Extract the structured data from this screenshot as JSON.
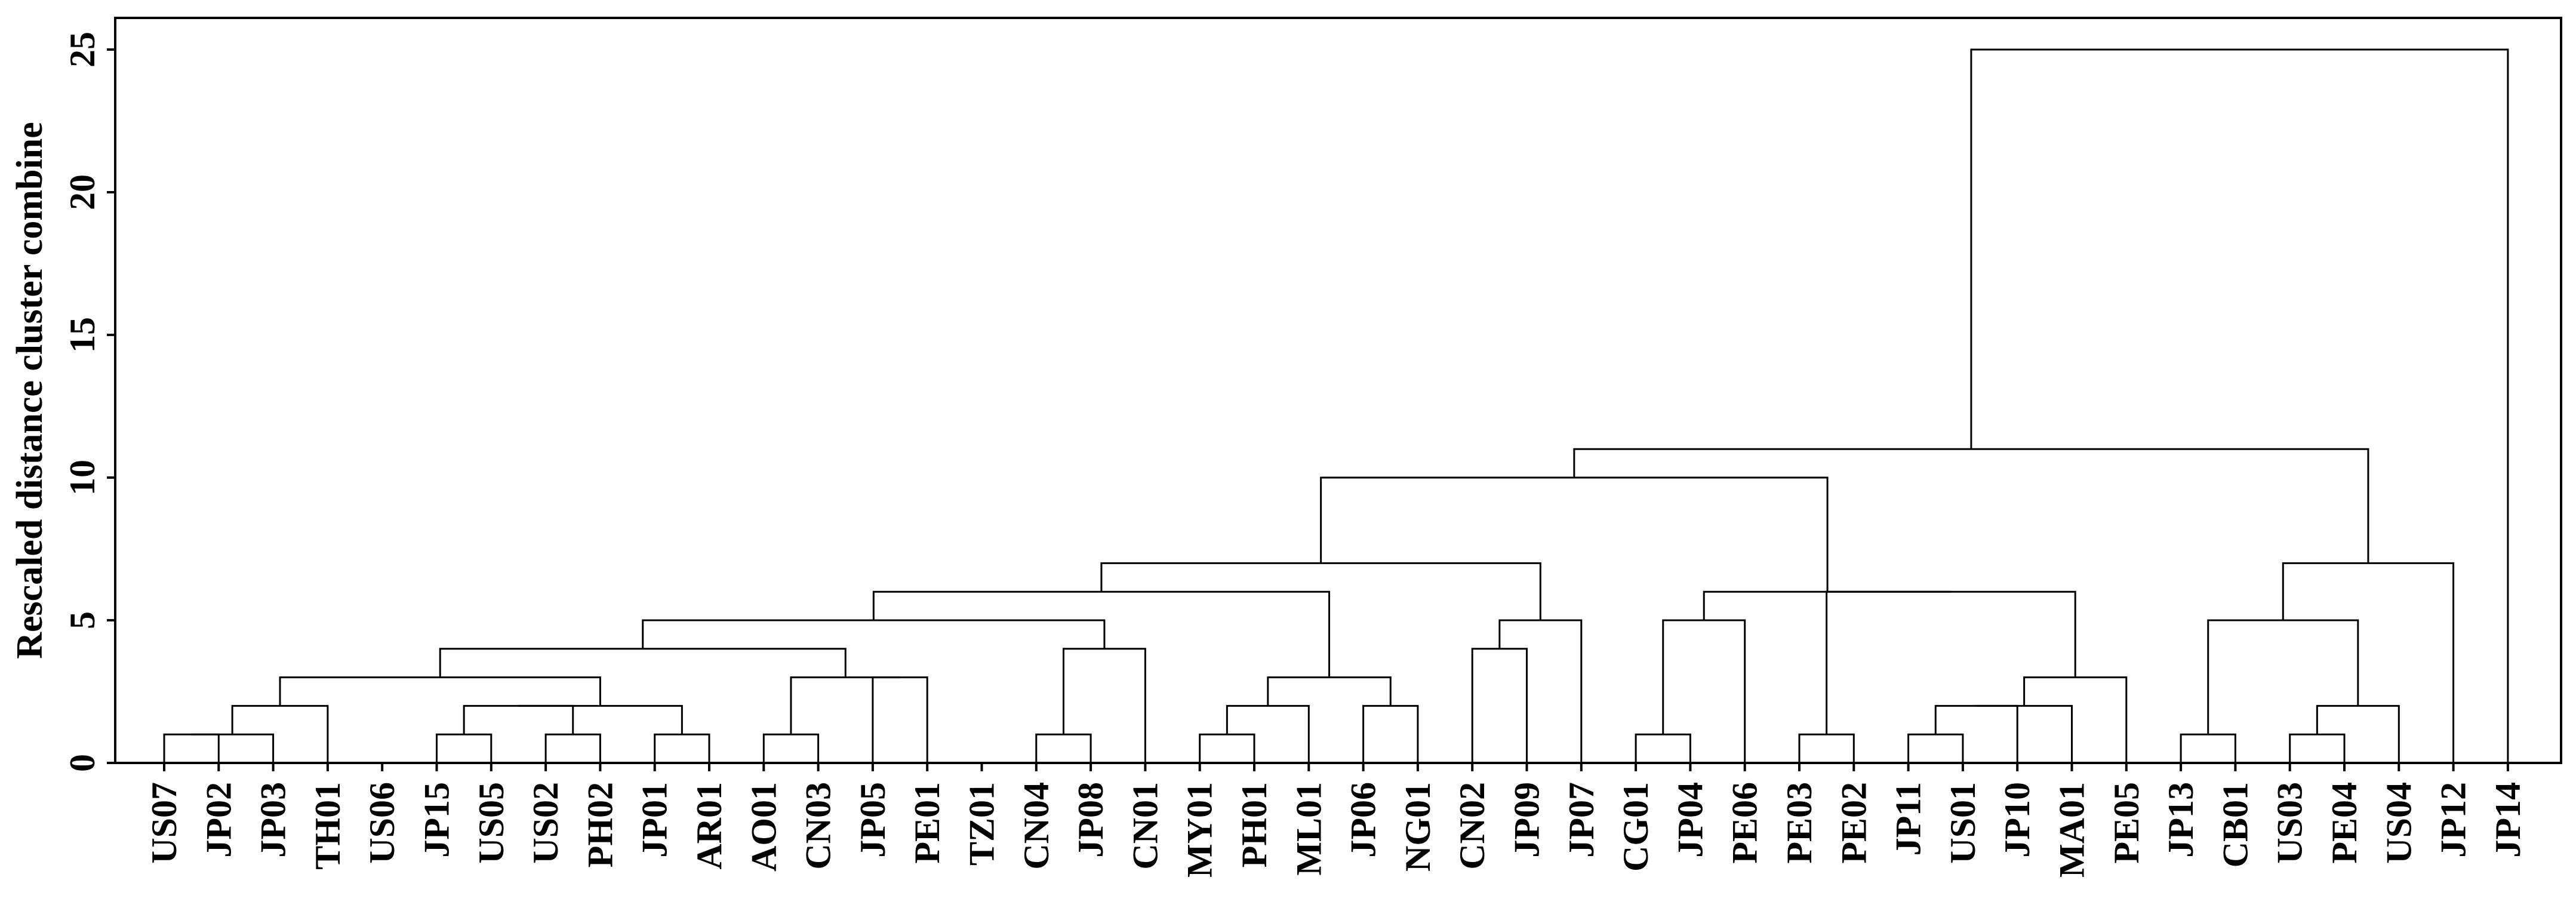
{
  "chart_data": {
    "type": "dendrogram",
    "title": "",
    "xlabel": "",
    "ylabel": "Rescaled distance cluster combine",
    "ylim": [
      0,
      26
    ],
    "yticks": [
      0,
      5,
      10,
      15,
      20,
      25
    ],
    "grid": false,
    "leaves": [
      "US07",
      "JP02",
      "JP03",
      "TH01",
      "US06",
      "JP15",
      "US05",
      "US02",
      "PH02",
      "JP01",
      "AR01",
      "AO01",
      "CN03",
      "JP05",
      "PE01",
      "TZ01",
      "CN04",
      "JP08",
      "CN01",
      "MY01",
      "PH01",
      "ML01",
      "JP06",
      "NG01",
      "CN02",
      "JP09",
      "JP07",
      "CG01",
      "JP04",
      "PE06",
      "PE03",
      "PE02",
      "JP11",
      "US01",
      "JP10",
      "MA01",
      "PE05",
      "JP13",
      "CB01",
      "US03",
      "PE04",
      "US04",
      "JP12",
      "JP14"
    ],
    "merges": [
      {
        "id": "m1",
        "children": [
          "US07",
          "JP02"
        ],
        "height": 1
      },
      {
        "id": "m2",
        "children": [
          "m1",
          "JP03"
        ],
        "height": 1
      },
      {
        "id": "m3",
        "children": [
          "m2",
          "TH01"
        ],
        "height": 2
      },
      {
        "id": "m4",
        "children": [
          "JP15",
          "US05"
        ],
        "height": 1
      },
      {
        "id": "m5",
        "children": [
          "US02",
          "PH02"
        ],
        "height": 1
      },
      {
        "id": "m6",
        "children": [
          "m4",
          "m5"
        ],
        "height": 2
      },
      {
        "id": "m7",
        "children": [
          "JP01",
          "AR01"
        ],
        "height": 1
      },
      {
        "id": "m8",
        "children": [
          "m6",
          "m7"
        ],
        "height": 2
      },
      {
        "id": "m9",
        "children": [
          "m3",
          "m8"
        ],
        "height": 3
      },
      {
        "id": "m10",
        "children": [
          "AO01",
          "CN03"
        ],
        "height": 1
      },
      {
        "id": "m11",
        "children": [
          "JP05",
          "PE01"
        ],
        "height": 3
      },
      {
        "id": "m12",
        "children": [
          "m10",
          "m11"
        ],
        "height": 3
      },
      {
        "id": "m13",
        "children": [
          "m9",
          "m12"
        ],
        "height": 4
      },
      {
        "id": "m14",
        "children": [
          "CN04",
          "JP08"
        ],
        "height": 1
      },
      {
        "id": "m15",
        "children": [
          "m14",
          "CN01"
        ],
        "height": 4
      },
      {
        "id": "m16",
        "children": [
          "m13",
          "m15"
        ],
        "height": 5
      },
      {
        "id": "m17",
        "children": [
          "MY01",
          "PH01"
        ],
        "height": 1
      },
      {
        "id": "m18",
        "children": [
          "m17",
          "ML01"
        ],
        "height": 2
      },
      {
        "id": "m19",
        "children": [
          "JP06",
          "NG01"
        ],
        "height": 2
      },
      {
        "id": "m20",
        "children": [
          "m18",
          "m19"
        ],
        "height": 3
      },
      {
        "id": "m21",
        "children": [
          "m16",
          "m20"
        ],
        "height": 6
      },
      {
        "id": "m22",
        "children": [
          "CN02",
          "JP09"
        ],
        "height": 4
      },
      {
        "id": "m23",
        "children": [
          "m22",
          "JP07"
        ],
        "height": 5
      },
      {
        "id": "m24",
        "children": [
          "m21",
          "m23"
        ],
        "height": 7
      },
      {
        "id": "m25",
        "children": [
          "CG01",
          "JP04"
        ],
        "height": 1
      },
      {
        "id": "m26",
        "children": [
          "m25",
          "PE06"
        ],
        "height": 5
      },
      {
        "id": "m27",
        "children": [
          "PE03",
          "PE02"
        ],
        "height": 1
      },
      {
        "id": "m28",
        "children": [
          "JP11",
          "US01"
        ],
        "height": 1
      },
      {
        "id": "m29",
        "children": [
          "m28",
          "JP10"
        ],
        "height": 2
      },
      {
        "id": "m30",
        "children": [
          "m29",
          "MA01"
        ],
        "height": 2
      },
      {
        "id": "m31",
        "children": [
          "m30",
          "PE05"
        ],
        "height": 3
      },
      {
        "id": "m32",
        "children": [
          "m27",
          "m31"
        ],
        "height": 6
      },
      {
        "id": "m33",
        "children": [
          "m26",
          "m32"
        ],
        "height": 6
      },
      {
        "id": "m34",
        "children": [
          "m24",
          "m33"
        ],
        "height": 10
      },
      {
        "id": "m35",
        "children": [
          "JP13",
          "CB01"
        ],
        "height": 1
      },
      {
        "id": "m36",
        "children": [
          "US03",
          "PE04"
        ],
        "height": 1
      },
      {
        "id": "m37",
        "children": [
          "m36",
          "US04"
        ],
        "height": 2
      },
      {
        "id": "m38",
        "children": [
          "m35",
          "m37"
        ],
        "height": 5
      },
      {
        "id": "m39",
        "children": [
          "m38",
          "JP12"
        ],
        "height": 7
      },
      {
        "id": "m40",
        "children": [
          "m34",
          "m39"
        ],
        "height": 11
      },
      {
        "id": "m41",
        "children": [
          "m40",
          "JP14"
        ],
        "height": 25
      }
    ]
  }
}
